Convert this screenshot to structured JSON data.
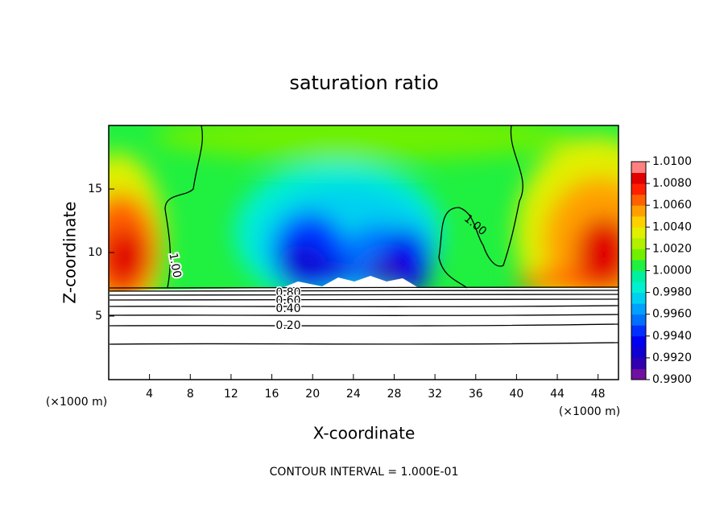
{
  "chart_data": {
    "type": "contour",
    "title": "saturation ratio",
    "x_label": "X-coordinate",
    "y_label": "Z-coordinate",
    "x_unit": "(×1000 m)",
    "y_unit": "(×1000 m)",
    "footer": "CONTOUR INTERVAL = 1.000E-01",
    "xlim": [
      0,
      50
    ],
    "ylim": [
      0,
      20
    ],
    "xticks": [
      4,
      8,
      12,
      16,
      20,
      24,
      28,
      32,
      36,
      40,
      44,
      48
    ],
    "yticks": [
      5,
      10,
      15
    ],
    "contour_labels": [
      "1.00",
      "1.00",
      "0.80",
      "0.60",
      "0.40",
      "0.20"
    ],
    "clim": [
      0.99,
      1.01
    ],
    "cticks": [
      {
        "value": 0.99,
        "label": "0.9900"
      },
      {
        "value": 0.992,
        "label": "0.9920"
      },
      {
        "value": 0.994,
        "label": "0.9940"
      },
      {
        "value": 0.996,
        "label": "0.9960"
      },
      {
        "value": 0.998,
        "label": "0.9980"
      },
      {
        "value": 1.0,
        "label": "1.0000"
      },
      {
        "value": 1.002,
        "label": "1.0020"
      },
      {
        "value": 1.004,
        "label": "1.0040"
      },
      {
        "value": 1.006,
        "label": "1.0060"
      },
      {
        "value": 1.008,
        "label": "1.0080"
      },
      {
        "value": 1.01,
        "label": "1.0100"
      }
    ],
    "colors": [
      "#7010a0",
      "#3000b0",
      "#1000d0",
      "#0000f0",
      "#0030ff",
      "#0070ff",
      "#00a0ff",
      "#00d0f0",
      "#00f0d0",
      "#00f0a0",
      "#20f040",
      "#70f000",
      "#b0f000",
      "#e0f000",
      "#ffd000",
      "#ffa000",
      "#ff6000",
      "#ff2000",
      "#e00000",
      "#ff8080"
    ]
  }
}
